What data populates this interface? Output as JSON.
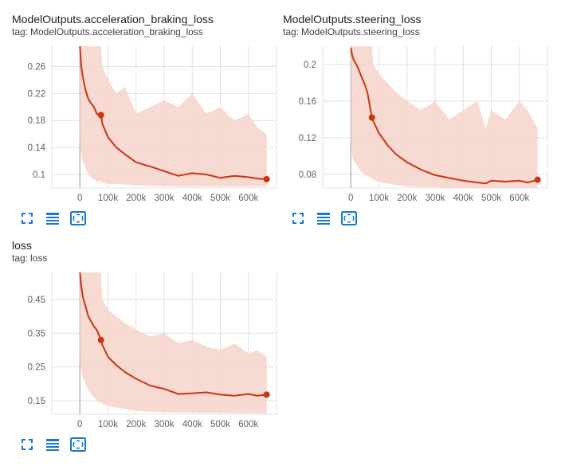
{
  "cards": [
    {
      "title": "ModelOutputs.acceleration_braking_loss",
      "tag_prefix": "tag:",
      "tag": "ModelOutputs.acceleration_braking_loss"
    },
    {
      "title": "ModelOutputs.steering_loss",
      "tag_prefix": "tag:",
      "tag": "ModelOutputs.steering_loss"
    },
    {
      "title": "loss",
      "tag_prefix": "tag:",
      "tag": "loss"
    }
  ],
  "toolbar_icons": [
    "fit-domain-icon",
    "toggle-y-log-icon",
    "fit-to-data-icon"
  ],
  "colors": {
    "smoothed_line": "#cc3311",
    "raw_band": "#f6d3c9",
    "axis": "#9e9e9e",
    "grid": "#e0e0e0",
    "toolbar_icon": "#1976d2"
  },
  "chart_data": [
    {
      "type": "line",
      "title": "ModelOutputs.acceleration_braking_loss",
      "xlim": [
        -100000,
        700000
      ],
      "ylim": [
        0.08,
        0.29
      ],
      "x_ticks": [
        "0",
        "100k",
        "200k",
        "300k",
        "400k",
        "500k",
        "600k"
      ],
      "x_tick_values": [
        0,
        100000,
        200000,
        300000,
        400000,
        500000,
        600000
      ],
      "y_ticks": [
        "0.1",
        "0.14",
        "0.18",
        "0.22",
        "0.26"
      ],
      "y_tick_values": [
        0.1,
        0.14,
        0.18,
        0.22,
        0.26
      ],
      "series": [
        {
          "x": [
            0,
            5000,
            10000,
            20000,
            30000,
            40000,
            50000,
            60000,
            75000,
            80000,
            100000,
            130000,
            160000,
            200000,
            250000,
            300000,
            350000,
            400000,
            450000,
            500000,
            550000,
            600000,
            630000,
            665000
          ],
          "y": [
            0.29,
            0.26,
            0.245,
            0.225,
            0.212,
            0.205,
            0.2,
            0.19,
            0.188,
            0.175,
            0.155,
            0.14,
            0.13,
            0.118,
            0.112,
            0.105,
            0.098,
            0.102,
            0.1,
            0.095,
            0.098,
            0.096,
            0.094,
            0.093
          ],
          "raw_upper": [
            0.29,
            0.29,
            0.29,
            0.29,
            0.29,
            0.29,
            0.29,
            0.29,
            0.29,
            0.26,
            0.24,
            0.22,
            0.23,
            0.19,
            0.2,
            0.21,
            0.2,
            0.22,
            0.19,
            0.2,
            0.18,
            0.19,
            0.17,
            0.16
          ],
          "raw_lower": [
            0.15,
            0.13,
            0.12,
            0.11,
            0.1,
            0.095,
            0.093,
            0.09,
            0.09,
            0.088,
            0.086,
            0.086,
            0.085,
            0.084,
            0.083,
            0.083,
            0.082,
            0.082,
            0.082,
            0.082,
            0.082,
            0.082,
            0.082,
            0.082
          ]
        }
      ]
    },
    {
      "type": "line",
      "title": "ModelOutputs.steering_loss",
      "xlim": [
        -100000,
        700000
      ],
      "ylim": [
        0.065,
        0.22
      ],
      "x_ticks": [
        "0",
        "100k",
        "200k",
        "300k",
        "400k",
        "500k",
        "600k"
      ],
      "x_tick_values": [
        0,
        100000,
        200000,
        300000,
        400000,
        500000,
        600000
      ],
      "y_ticks": [
        "0.08",
        "0.12",
        "0.16",
        "0.2"
      ],
      "y_tick_values": [
        0.08,
        0.12,
        0.16,
        0.2
      ],
      "series": [
        {
          "x": [
            0,
            5000,
            10000,
            20000,
            30000,
            40000,
            50000,
            60000,
            75000,
            80000,
            100000,
            130000,
            160000,
            200000,
            250000,
            300000,
            350000,
            400000,
            450000,
            480000,
            500000,
            550000,
            600000,
            630000,
            665000
          ],
          "y": [
            0.218,
            0.21,
            0.205,
            0.2,
            0.193,
            0.185,
            0.178,
            0.168,
            0.142,
            0.138,
            0.125,
            0.112,
            0.102,
            0.093,
            0.085,
            0.079,
            0.076,
            0.073,
            0.071,
            0.07,
            0.073,
            0.072,
            0.073,
            0.071,
            0.074
          ],
          "raw_upper": [
            0.22,
            0.22,
            0.22,
            0.22,
            0.22,
            0.22,
            0.22,
            0.22,
            0.22,
            0.2,
            0.19,
            0.18,
            0.17,
            0.16,
            0.15,
            0.16,
            0.14,
            0.15,
            0.16,
            0.13,
            0.15,
            0.14,
            0.16,
            0.15,
            0.13
          ],
          "raw_lower": [
            0.12,
            0.1,
            0.095,
            0.09,
            0.085,
            0.082,
            0.08,
            0.078,
            0.076,
            0.074,
            0.072,
            0.07,
            0.068,
            0.067,
            0.066,
            0.066,
            0.065,
            0.065,
            0.065,
            0.065,
            0.065,
            0.065,
            0.065,
            0.065,
            0.065
          ]
        }
      ]
    },
    {
      "type": "line",
      "title": "loss",
      "xlim": [
        -100000,
        700000
      ],
      "ylim": [
        0.11,
        0.53
      ],
      "x_ticks": [
        "0",
        "100k",
        "200k",
        "300k",
        "400k",
        "500k",
        "600k"
      ],
      "x_tick_values": [
        0,
        100000,
        200000,
        300000,
        400000,
        500000,
        600000
      ],
      "y_ticks": [
        "0.15",
        "0.25",
        "0.35",
        "0.45"
      ],
      "y_tick_values": [
        0.15,
        0.25,
        0.35,
        0.45
      ],
      "series": [
        {
          "x": [
            0,
            5000,
            10000,
            20000,
            30000,
            40000,
            50000,
            60000,
            75000,
            80000,
            100000,
            130000,
            160000,
            200000,
            250000,
            300000,
            350000,
            400000,
            450000,
            500000,
            550000,
            600000,
            630000,
            665000
          ],
          "y": [
            0.53,
            0.49,
            0.46,
            0.43,
            0.4,
            0.385,
            0.37,
            0.36,
            0.33,
            0.315,
            0.28,
            0.255,
            0.235,
            0.215,
            0.195,
            0.185,
            0.17,
            0.172,
            0.175,
            0.168,
            0.165,
            0.17,
            0.165,
            0.168
          ],
          "raw_upper": [
            0.53,
            0.53,
            0.53,
            0.53,
            0.53,
            0.53,
            0.53,
            0.53,
            0.53,
            0.45,
            0.42,
            0.4,
            0.38,
            0.36,
            0.34,
            0.35,
            0.32,
            0.33,
            0.31,
            0.3,
            0.32,
            0.29,
            0.3,
            0.28
          ],
          "raw_lower": [
            0.28,
            0.24,
            0.22,
            0.2,
            0.18,
            0.17,
            0.16,
            0.15,
            0.145,
            0.14,
            0.135,
            0.13,
            0.125,
            0.12,
            0.118,
            0.116,
            0.115,
            0.115,
            0.114,
            0.114,
            0.113,
            0.113,
            0.113,
            0.113
          ]
        }
      ]
    }
  ]
}
